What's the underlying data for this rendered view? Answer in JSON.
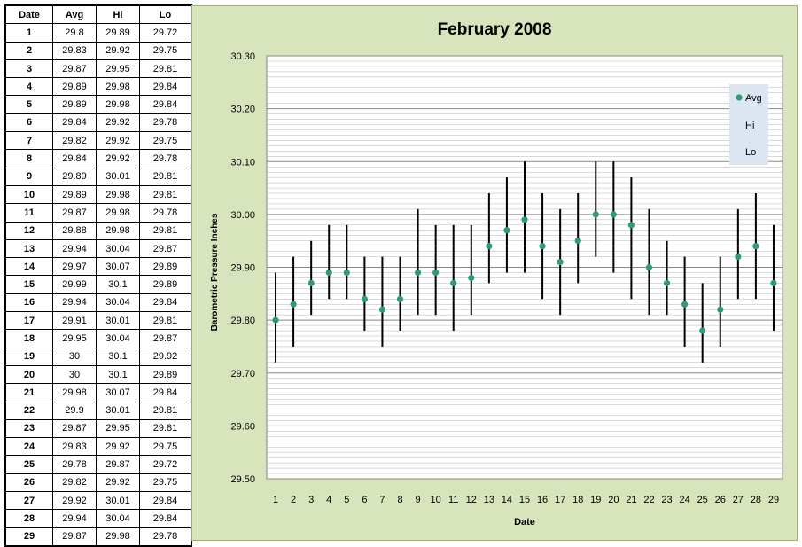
{
  "table": {
    "headers": [
      "Date",
      "Avg",
      "Hi",
      "Lo"
    ],
    "rows": [
      [
        "1",
        "29.8",
        "29.89",
        "29.72"
      ],
      [
        "2",
        "29.83",
        "29.92",
        "29.75"
      ],
      [
        "3",
        "29.87",
        "29.95",
        "29.81"
      ],
      [
        "4",
        "29.89",
        "29.98",
        "29.84"
      ],
      [
        "5",
        "29.89",
        "29.98",
        "29.84"
      ],
      [
        "6",
        "29.84",
        "29.92",
        "29.78"
      ],
      [
        "7",
        "29.82",
        "29.92",
        "29.75"
      ],
      [
        "8",
        "29.84",
        "29.92",
        "29.78"
      ],
      [
        "9",
        "29.89",
        "30.01",
        "29.81"
      ],
      [
        "10",
        "29.89",
        "29.98",
        "29.81"
      ],
      [
        "11",
        "29.87",
        "29.98",
        "29.78"
      ],
      [
        "12",
        "29.88",
        "29.98",
        "29.81"
      ],
      [
        "13",
        "29.94",
        "30.04",
        "29.87"
      ],
      [
        "14",
        "29.97",
        "30.07",
        "29.89"
      ],
      [
        "15",
        "29.99",
        "30.1",
        "29.89"
      ],
      [
        "16",
        "29.94",
        "30.04",
        "29.84"
      ],
      [
        "17",
        "29.91",
        "30.01",
        "29.81"
      ],
      [
        "18",
        "29.95",
        "30.04",
        "29.87"
      ],
      [
        "19",
        "30",
        "30.1",
        "29.92"
      ],
      [
        "20",
        "30",
        "30.1",
        "29.89"
      ],
      [
        "21",
        "29.98",
        "30.07",
        "29.84"
      ],
      [
        "22",
        "29.9",
        "30.01",
        "29.81"
      ],
      [
        "23",
        "29.87",
        "29.95",
        "29.81"
      ],
      [
        "24",
        "29.83",
        "29.92",
        "29.75"
      ],
      [
        "25",
        "29.78",
        "29.87",
        "29.72"
      ],
      [
        "26",
        "29.82",
        "29.92",
        "29.75"
      ],
      [
        "27",
        "29.92",
        "30.01",
        "29.84"
      ],
      [
        "28",
        "29.94",
        "30.04",
        "29.84"
      ],
      [
        "29",
        "29.87",
        "29.98",
        "29.78"
      ]
    ]
  },
  "chart_data": {
    "type": "scatter",
    "title": "February 2008",
    "xlabel": "Date",
    "ylabel": "Barometric Pressure Inches",
    "x": [
      1,
      2,
      3,
      4,
      5,
      6,
      7,
      8,
      9,
      10,
      11,
      12,
      13,
      14,
      15,
      16,
      17,
      18,
      19,
      20,
      21,
      22,
      23,
      24,
      25,
      26,
      27,
      28,
      29
    ],
    "series": [
      {
        "name": "Avg",
        "values": [
          29.8,
          29.83,
          29.87,
          29.89,
          29.89,
          29.84,
          29.82,
          29.84,
          29.89,
          29.89,
          29.87,
          29.88,
          29.94,
          29.97,
          29.99,
          29.94,
          29.91,
          29.95,
          30,
          30,
          29.98,
          29.9,
          29.87,
          29.83,
          29.78,
          29.82,
          29.92,
          29.94,
          29.87
        ]
      },
      {
        "name": "Hi",
        "values": [
          29.89,
          29.92,
          29.95,
          29.98,
          29.98,
          29.92,
          29.92,
          29.92,
          30.01,
          29.98,
          29.98,
          29.98,
          30.04,
          30.07,
          30.1,
          30.04,
          30.01,
          30.04,
          30.1,
          30.1,
          30.07,
          30.01,
          29.95,
          29.92,
          29.87,
          29.92,
          30.01,
          30.04,
          29.98
        ]
      },
      {
        "name": "Lo",
        "values": [
          29.72,
          29.75,
          29.81,
          29.84,
          29.84,
          29.78,
          29.75,
          29.78,
          29.81,
          29.81,
          29.78,
          29.81,
          29.87,
          29.89,
          29.89,
          29.84,
          29.81,
          29.87,
          29.92,
          29.89,
          29.84,
          29.81,
          29.81,
          29.75,
          29.72,
          29.75,
          29.84,
          29.84,
          29.78
        ]
      }
    ],
    "ylim": [
      29.5,
      30.3
    ],
    "y_ticks": [
      "29.50",
      "29.60",
      "29.70",
      "29.80",
      "29.90",
      "30.00",
      "30.10",
      "30.20",
      "30.30"
    ],
    "x_ticks": [
      "1",
      "2",
      "3",
      "4",
      "5",
      "6",
      "7",
      "8",
      "9",
      "10",
      "11",
      "12",
      "13",
      "14",
      "15",
      "16",
      "17",
      "18",
      "19",
      "20",
      "21",
      "22",
      "23",
      "24",
      "25",
      "26",
      "27",
      "28",
      "29"
    ],
    "grid": true,
    "legend": "top-right",
    "colors": {
      "marker": "#2e9c72",
      "bar": "#000000",
      "panel": "#d8e4bc",
      "plot": "#ffffff",
      "legend_bg": "#dce6f1",
      "grid": "#a0a0a0"
    }
  }
}
